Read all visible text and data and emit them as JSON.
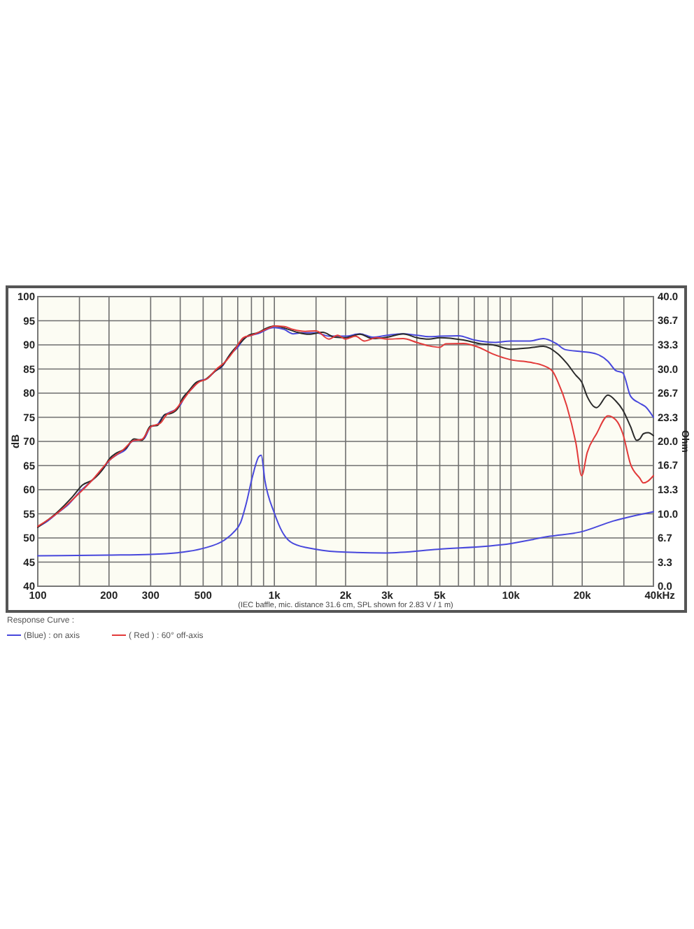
{
  "chart_data": {
    "type": "line",
    "xlabel": "Hz",
    "ylabel": "dB",
    "y2label": "Ohm",
    "legend_title": "Response Curve :",
    "annotations": [
      "(IEC baffle, mic. distance 31.6 cm, SPL shown for 2.83 V / 1 m)"
    ],
    "log": "x",
    "grid": true,
    "legend": "bottom left",
    "xlim": [
      100,
      40000
    ],
    "xticks": [
      100,
      {
        "value": 150,
        "label": null
      },
      200,
      300,
      {
        "value": 400,
        "label": null
      },
      500,
      {
        "value": 600,
        "label": null
      },
      {
        "value": 700,
        "label": null
      },
      {
        "value": 800,
        "label": null
      },
      {
        "value": 900,
        "label": null
      },
      {
        "value": 1000,
        "label": "1k"
      },
      {
        "value": 1500,
        "label": null
      },
      {
        "value": 2000,
        "label": "2k"
      },
      {
        "value": 3000,
        "label": "3k"
      },
      {
        "value": 4000,
        "label": null
      },
      {
        "value": 5000,
        "label": "5k"
      },
      {
        "value": 6000,
        "label": null
      },
      {
        "value": 7000,
        "label": null
      },
      {
        "value": 8000,
        "label": null
      },
      {
        "value": 9000,
        "label": null
      },
      {
        "value": 10000,
        "label": "10k"
      },
      {
        "value": 15000,
        "label": null
      },
      {
        "value": 20000,
        "label": "20k"
      },
      {
        "value": 30000,
        "label": null
      },
      {
        "value": 40000,
        "label": "40k"
      }
    ],
    "ylim": [
      40,
      100
    ],
    "yticks": [
      40,
      45,
      50,
      55,
      60,
      65,
      70,
      75,
      80,
      85,
      90,
      95,
      100
    ],
    "y2lim": [
      0,
      40
    ],
    "y2ticks": [
      {
        "value": 0,
        "label": "0.0"
      },
      {
        "value": 3.333,
        "label": "3.3"
      },
      {
        "value": 6.667,
        "label": "6.7"
      },
      {
        "value": 10,
        "label": "10.0"
      },
      {
        "value": 13.333,
        "label": "13.3"
      },
      {
        "value": 16.667,
        "label": "16.7"
      },
      {
        "value": 20,
        "label": "20.0"
      },
      {
        "value": 23.333,
        "label": "23.3"
      },
      {
        "value": 26.667,
        "label": "26.7"
      },
      {
        "value": 30,
        "label": "30.0"
      },
      {
        "value": 33.333,
        "label": "33.3"
      },
      {
        "value": 36.667,
        "label": "36.7"
      },
      {
        "value": 40,
        "label": "40.0"
      }
    ],
    "series": [
      {
        "name": "(Blue) : on axis",
        "color": "#4848dc",
        "x": [
          100,
          110,
          120,
          135,
          150,
          170,
          190,
          200,
          215,
          235,
          250,
          265,
          280,
          300,
          320,
          340,
          360,
          380,
          400,
          420,
          450,
          480,
          520,
          560,
          600,
          650,
          700,
          750,
          800,
          870,
          950,
          1000,
          1100,
          1200,
          1300,
          1500,
          1700,
          2000,
          2300,
          2600,
          3000,
          3500,
          4000,
          4500,
          5000,
          6000,
          7000,
          8500,
          10000,
          12000,
          13700,
          15500,
          17000,
          20000,
          23000,
          25700,
          27700,
          29700,
          32000,
          35000,
          37000,
          40000
        ],
        "values": [
          52.3,
          53.5,
          55,
          57,
          59.5,
          62,
          64.5,
          66,
          67.2,
          68.3,
          70,
          70.3,
          70.5,
          73,
          73.5,
          75.3,
          76,
          76.5,
          77.5,
          79.5,
          81,
          82.5,
          83,
          84.5,
          85.5,
          88,
          89.5,
          91.5,
          92,
          92.5,
          93.4,
          93.6,
          93.2,
          92.3,
          92.5,
          92.5,
          91.8,
          91.8,
          92.3,
          91.6,
          92,
          92.3,
          92,
          91.7,
          91.8,
          91.9,
          91,
          90.5,
          90.8,
          90.8,
          91.3,
          90.3,
          89,
          88.6,
          88.1,
          86.6,
          84.7,
          84.2,
          79.4,
          77.9,
          77.2,
          75
        ]
      },
      {
        "color": "#2a2a2a",
        "x": [
          100,
          120,
          140,
          155,
          170,
          190,
          200,
          215,
          235,
          255,
          275,
          300,
          320,
          345,
          365,
          390,
          410,
          430,
          470,
          510,
          560,
          600,
          660,
          720,
          780,
          850,
          930,
          1000,
          1100,
          1250,
          1400,
          1600,
          1800,
          2000,
          2300,
          2600,
          3000,
          3500,
          4000,
          4500,
          5000,
          6300,
          7500,
          8400,
          10000,
          12000,
          13700,
          15800,
          17200,
          18800,
          19900,
          21000,
          23000,
          25700,
          27700,
          29700,
          32000,
          34000,
          35000,
          36300,
          38000,
          40000
        ],
        "values": [
          52.2,
          55.2,
          58.5,
          61,
          62,
          64.5,
          66.3,
          67.6,
          68.5,
          70.5,
          70.2,
          73.2,
          73.3,
          75.6,
          75.8,
          76.8,
          79,
          80.2,
          82.3,
          82.8,
          84.5,
          85.6,
          88.5,
          90.5,
          92,
          92.5,
          93.5,
          93.9,
          93.5,
          92.6,
          92.2,
          92.6,
          91.6,
          91.5,
          92.2,
          91.3,
          91.6,
          92.3,
          91.5,
          91.2,
          91.5,
          91,
          90.2,
          90,
          89.1,
          89.4,
          89.7,
          88.1,
          86.2,
          83.7,
          82.3,
          79.3,
          77,
          79.6,
          78.4,
          76.5,
          73.1,
          70.2,
          70.5,
          71.6,
          71.8,
          71.2
        ]
      },
      {
        "name": "( Red ) : 60° off-axis",
        "color": "#e23a3a",
        "x": [
          100,
          120,
          150,
          170,
          200,
          230,
          255,
          275,
          300,
          330,
          350,
          380,
          410,
          440,
          480,
          520,
          570,
          620,
          680,
          740,
          800,
          880,
          950,
          1000,
          1100,
          1200,
          1350,
          1500,
          1700,
          1850,
          2000,
          2200,
          2400,
          2700,
          3000,
          3500,
          4000,
          4500,
          5000,
          5300,
          6300,
          7300,
          8400,
          10000,
          12000,
          13700,
          15000,
          15800,
          17200,
          18800,
          19900,
          21000,
          23000,
          25700,
          27700,
          29700,
          32000,
          35000,
          36300,
          38000,
          40000
        ],
        "values": [
          52.4,
          55,
          59.3,
          62,
          66,
          68.3,
          70.2,
          70.4,
          73,
          73.8,
          75.5,
          76.5,
          78.5,
          80.5,
          82.3,
          83,
          85,
          86.5,
          89,
          91.5,
          92,
          92.8,
          93.5,
          93.9,
          93.8,
          93.2,
          92.8,
          92.9,
          91.2,
          92,
          91.2,
          91.8,
          90.8,
          91.5,
          91.2,
          91.3,
          90.5,
          89.8,
          89.5,
          90.2,
          90.3,
          89.5,
          88.1,
          86.9,
          86.4,
          85.7,
          84.5,
          82.3,
          77.4,
          69.7,
          62.9,
          67.7,
          71.6,
          75.3,
          74.5,
          71.6,
          65.3,
          62.4,
          61.4,
          61.8,
          62.9
        ]
      },
      {
        "color": "#4848dc",
        "axis": "y2",
        "x": [
          100,
          200,
          300,
          430,
          510,
          610,
          670,
          720,
          760,
          810,
          860,
          880,
          912,
          1000,
          1080,
          1200,
          1500,
          2000,
          2950,
          4900,
          10000,
          14600,
          19700,
          27000,
          40000
        ],
        "values": [
          4.2,
          4.3,
          4.4,
          4.8,
          5.3,
          6.3,
          7.4,
          8.8,
          11.4,
          15.3,
          17.9,
          18.1,
          14.6,
          10.1,
          7.5,
          5.9,
          5.1,
          4.7,
          4.6,
          5.1,
          5.9,
          6.9,
          7.5,
          9,
          10.3
        ]
      }
    ]
  }
}
